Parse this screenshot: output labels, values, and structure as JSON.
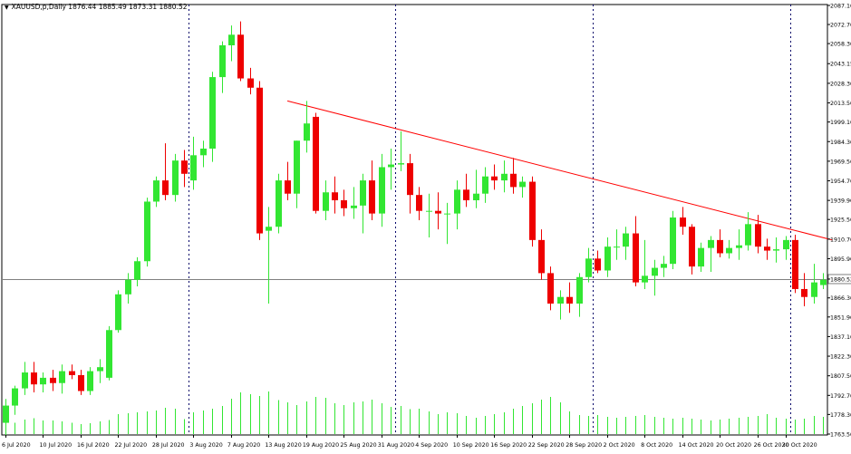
{
  "chart_data": {
    "type": "candlestick",
    "symbol_line": "XAUUSD,p,Daily  1876.44 1885.49 1873.31 1880.52",
    "ohlc_header": {
      "open": 1876.44,
      "high": 1885.49,
      "low": 1873.31,
      "close": 1880.52
    },
    "current_price_label": "1880.52",
    "ylim": [
      1763.5,
      2087.1
    ],
    "y_ticks": [
      "2087.10",
      "2072.70",
      "2058.30",
      "2043.15",
      "2028.30",
      "2013.50",
      "1999.10",
      "1984.30",
      "1969.50",
      "1954.70",
      "1939.90",
      "1925.50",
      "1910.70",
      "1895.90",
      "1880.52",
      "1866.30",
      "1851.90",
      "1837.10",
      "1822.30",
      "1807.50",
      "1792.70",
      "1778.30",
      "1763.50"
    ],
    "x_labels": [
      "6 Jul 2020",
      "10 Jul 2020",
      "16 Jul 2020",
      "22 Jul 2020",
      "28 Jul 2020",
      "3 Aug 2020",
      "7 Aug 2020",
      "13 Aug 2020",
      "19 Aug 2020",
      "25 Aug 2020",
      "31 Aug 2020",
      "4 Sep 2020",
      "10 Sep 2020",
      "16 Sep 2020",
      "22 Sep 2020",
      "28 Sep 2020",
      "2 Oct 2020",
      "8 Oct 2020",
      "14 Oct 2020",
      "20 Oct 2020",
      "26 Oct 2020",
      "30 Oct 2020"
    ],
    "x_label_bar_index": [
      0,
      4,
      8,
      12,
      16,
      20,
      24,
      28,
      32,
      36,
      40,
      44,
      48,
      52,
      56,
      60,
      64,
      68,
      72,
      76,
      80,
      83
    ],
    "period_separator_bar_index": [
      19.5,
      41.5,
      62.5,
      83.5
    ],
    "trendline": {
      "from": {
        "bar": 30,
        "price": 2015.0
      },
      "to": {
        "bar": 88,
        "price": 1910.0
      }
    },
    "colors": {
      "bull": "#32e632",
      "bear": "#ee0000",
      "volume": "#32e632",
      "grid": "#dddddd",
      "trendline": "#ff0000",
      "separator": "#00006a"
    },
    "candles": [
      {
        "o": 1772,
        "h": 1790,
        "l": 1762,
        "c": 1785
      },
      {
        "o": 1785,
        "h": 1800,
        "l": 1778,
        "c": 1798
      },
      {
        "o": 1798,
        "h": 1818,
        "l": 1793,
        "c": 1810
      },
      {
        "o": 1810,
        "h": 1818,
        "l": 1795,
        "c": 1801
      },
      {
        "o": 1801,
        "h": 1810,
        "l": 1795,
        "c": 1806
      },
      {
        "o": 1806,
        "h": 1812,
        "l": 1796,
        "c": 1802
      },
      {
        "o": 1802,
        "h": 1816,
        "l": 1794,
        "c": 1811
      },
      {
        "o": 1811,
        "h": 1816,
        "l": 1805,
        "c": 1808
      },
      {
        "o": 1808,
        "h": 1812,
        "l": 1793,
        "c": 1796
      },
      {
        "o": 1796,
        "h": 1814,
        "l": 1793,
        "c": 1811
      },
      {
        "o": 1811,
        "h": 1820,
        "l": 1802,
        "c": 1814
      },
      {
        "o": 1806,
        "h": 1845,
        "l": 1804,
        "c": 1842
      },
      {
        "o": 1842,
        "h": 1872,
        "l": 1840,
        "c": 1869
      },
      {
        "o": 1869,
        "h": 1885,
        "l": 1862,
        "c": 1880
      },
      {
        "o": 1880,
        "h": 1897,
        "l": 1875,
        "c": 1894
      },
      {
        "o": 1894,
        "h": 1942,
        "l": 1890,
        "c": 1939
      },
      {
        "o": 1939,
        "h": 1958,
        "l": 1935,
        "c": 1955
      },
      {
        "o": 1955,
        "h": 1983,
        "l": 1940,
        "c": 1944
      },
      {
        "o": 1944,
        "h": 1975,
        "l": 1939,
        "c": 1970
      },
      {
        "o": 1970,
        "h": 1978,
        "l": 1950,
        "c": 1960
      },
      {
        "o": 1955,
        "h": 1988,
        "l": 1948,
        "c": 1974
      },
      {
        "o": 1974,
        "h": 1985,
        "l": 1965,
        "c": 1979
      },
      {
        "o": 1979,
        "h": 2037,
        "l": 1969,
        "c": 2033
      },
      {
        "o": 2033,
        "h": 2060,
        "l": 2021,
        "c": 2057
      },
      {
        "o": 2057,
        "h": 2072,
        "l": 2045,
        "c": 2065
      },
      {
        "o": 2065,
        "h": 2075,
        "l": 2030,
        "c": 2032
      },
      {
        "o": 2032,
        "h": 2040,
        "l": 2020,
        "c": 2025
      },
      {
        "o": 2025,
        "h": 2030,
        "l": 1910,
        "c": 1915
      },
      {
        "o": 1917,
        "h": 1935,
        "l": 1862,
        "c": 1920
      },
      {
        "o": 1920,
        "h": 1960,
        "l": 1915,
        "c": 1955
      },
      {
        "o": 1955,
        "h": 1969,
        "l": 1940,
        "c": 1945
      },
      {
        "o": 1945,
        "h": 1985,
        "l": 1934,
        "c": 1985
      },
      {
        "o": 1985,
        "h": 2015,
        "l": 1976,
        "c": 1998
      },
      {
        "o": 2003,
        "h": 2006,
        "l": 1930,
        "c": 1932
      },
      {
        "o": 1932,
        "h": 1955,
        "l": 1925,
        "c": 1946
      },
      {
        "o": 1946,
        "h": 1958,
        "l": 1930,
        "c": 1940
      },
      {
        "o": 1940,
        "h": 1948,
        "l": 1928,
        "c": 1934
      },
      {
        "o": 1934,
        "h": 1950,
        "l": 1926,
        "c": 1936
      },
      {
        "o": 1936,
        "h": 1960,
        "l": 1915,
        "c": 1955
      },
      {
        "o": 1955,
        "h": 1970,
        "l": 1925,
        "c": 1930
      },
      {
        "o": 1930,
        "h": 1975,
        "l": 1920,
        "c": 1965
      },
      {
        "o": 1965,
        "h": 1979,
        "l": 1948,
        "c": 1967
      },
      {
        "o": 1967,
        "h": 1992,
        "l": 1962,
        "c": 1968
      },
      {
        "o": 1968,
        "h": 1975,
        "l": 1930,
        "c": 1944
      },
      {
        "o": 1944,
        "h": 1950,
        "l": 1925,
        "c": 1932
      },
      {
        "o": 1932,
        "h": 1945,
        "l": 1912,
        "c": 1932
      },
      {
        "o": 1932,
        "h": 1946,
        "l": 1918,
        "c": 1930
      },
      {
        "o": 1930,
        "h": 1938,
        "l": 1907,
        "c": 1930
      },
      {
        "o": 1930,
        "h": 1955,
        "l": 1918,
        "c": 1948
      },
      {
        "o": 1948,
        "h": 1960,
        "l": 1935,
        "c": 1940
      },
      {
        "o": 1940,
        "h": 1963,
        "l": 1934,
        "c": 1945
      },
      {
        "o": 1945,
        "h": 1965,
        "l": 1938,
        "c": 1958
      },
      {
        "o": 1958,
        "h": 1967,
        "l": 1948,
        "c": 1955
      },
      {
        "o": 1955,
        "h": 1970,
        "l": 1946,
        "c": 1960
      },
      {
        "o": 1960,
        "h": 1972,
        "l": 1945,
        "c": 1950
      },
      {
        "o": 1950,
        "h": 1958,
        "l": 1942,
        "c": 1954
      },
      {
        "o": 1954,
        "h": 1958,
        "l": 1905,
        "c": 1910
      },
      {
        "o": 1910,
        "h": 1918,
        "l": 1880,
        "c": 1885
      },
      {
        "o": 1885,
        "h": 1890,
        "l": 1857,
        "c": 1862
      },
      {
        "o": 1862,
        "h": 1872,
        "l": 1850,
        "c": 1867
      },
      {
        "o": 1867,
        "h": 1878,
        "l": 1855,
        "c": 1862
      },
      {
        "o": 1862,
        "h": 1885,
        "l": 1852,
        "c": 1882
      },
      {
        "o": 1882,
        "h": 1904,
        "l": 1878,
        "c": 1896
      },
      {
        "o": 1896,
        "h": 1902,
        "l": 1885,
        "c": 1887
      },
      {
        "o": 1887,
        "h": 1912,
        "l": 1882,
        "c": 1905
      },
      {
        "o": 1905,
        "h": 1918,
        "l": 1895,
        "c": 1905
      },
      {
        "o": 1905,
        "h": 1920,
        "l": 1895,
        "c": 1915
      },
      {
        "o": 1915,
        "h": 1928,
        "l": 1875,
        "c": 1878
      },
      {
        "o": 1878,
        "h": 1910,
        "l": 1873,
        "c": 1883
      },
      {
        "o": 1883,
        "h": 1895,
        "l": 1868,
        "c": 1889
      },
      {
        "o": 1889,
        "h": 1898,
        "l": 1882,
        "c": 1892
      },
      {
        "o": 1892,
        "h": 1932,
        "l": 1888,
        "c": 1927
      },
      {
        "o": 1927,
        "h": 1935,
        "l": 1914,
        "c": 1920
      },
      {
        "o": 1920,
        "h": 1922,
        "l": 1884,
        "c": 1890
      },
      {
        "o": 1890,
        "h": 1908,
        "l": 1886,
        "c": 1904
      },
      {
        "o": 1904,
        "h": 1913,
        "l": 1886,
        "c": 1910
      },
      {
        "o": 1910,
        "h": 1918,
        "l": 1897,
        "c": 1900
      },
      {
        "o": 1900,
        "h": 1910,
        "l": 1896,
        "c": 1904
      },
      {
        "o": 1904,
        "h": 1918,
        "l": 1895,
        "c": 1906
      },
      {
        "o": 1906,
        "h": 1931,
        "l": 1902,
        "c": 1922
      },
      {
        "o": 1922,
        "h": 1929,
        "l": 1900,
        "c": 1905
      },
      {
        "o": 1905,
        "h": 1911,
        "l": 1895,
        "c": 1902
      },
      {
        "o": 1902,
        "h": 1912,
        "l": 1893,
        "c": 1903
      },
      {
        "o": 1903,
        "h": 1913,
        "l": 1895,
        "c": 1910
      },
      {
        "o": 1910,
        "h": 1914,
        "l": 1870,
        "c": 1873
      },
      {
        "o": 1873,
        "h": 1885,
        "l": 1860,
        "c": 1867
      },
      {
        "o": 1867,
        "h": 1892,
        "l": 1862,
        "c": 1878
      },
      {
        "o": 1876,
        "h": 1885,
        "l": 1873,
        "c": 1880
      }
    ],
    "volumes": [
      0.2,
      0.25,
      0.32,
      0.35,
      0.3,
      0.3,
      0.28,
      0.25,
      0.22,
      0.24,
      0.28,
      0.31,
      0.44,
      0.46,
      0.48,
      0.5,
      0.52,
      0.58,
      0.56,
      0.33,
      0.48,
      0.52,
      0.56,
      0.62,
      0.78,
      0.92,
      0.88,
      0.84,
      0.94,
      0.75,
      0.7,
      0.64,
      0.72,
      0.82,
      0.8,
      0.68,
      0.64,
      0.7,
      0.72,
      0.76,
      0.68,
      0.6,
      0.62,
      0.55,
      0.56,
      0.5,
      0.44,
      0.48,
      0.46,
      0.4,
      0.36,
      0.4,
      0.44,
      0.48,
      0.56,
      0.62,
      0.68,
      0.76,
      0.82,
      0.7,
      0.5,
      0.42,
      0.4,
      0.42,
      0.38,
      0.36,
      0.38,
      0.4,
      0.42,
      0.38,
      0.36,
      0.34,
      0.36,
      0.34,
      0.32,
      0.3,
      0.32,
      0.34,
      0.36,
      0.38,
      0.4,
      0.44,
      0.36,
      0.34,
      0.32,
      0.34,
      0.4,
      0.38
    ]
  }
}
